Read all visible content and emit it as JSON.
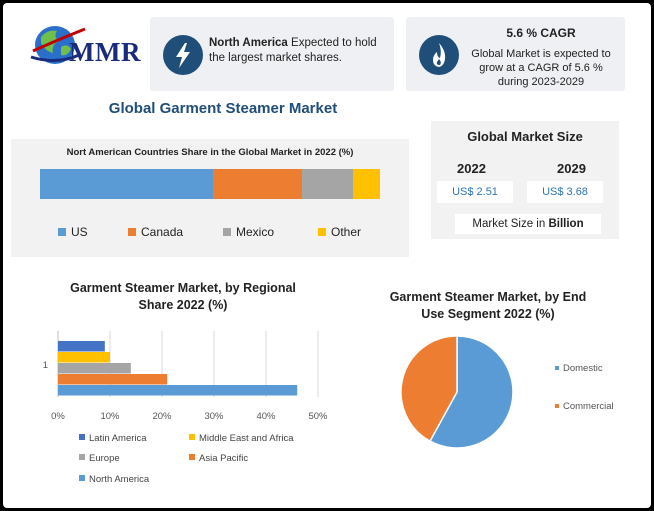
{
  "logo": {
    "text": "MMR"
  },
  "card_north_america": {
    "icon": "lightning-icon",
    "bold": "North America",
    "text": " Expected to hold the largest market shares."
  },
  "card_cagr": {
    "icon": "flame-icon",
    "head": "5.6 % CAGR",
    "text": "Global Market is expected to grow at a CAGR of 5.6 % during 2023-2029"
  },
  "main_title": "Global Garment Steamer Market",
  "market_size": {
    "title": "Global Market Size",
    "year1": "2022",
    "year2": "2029",
    "value1": "US$ 2.51",
    "value2": "US$ 3.68",
    "note_prefix": "Market Size in ",
    "note_bold": "Billion"
  },
  "colors": {
    "blue": "#5b9bd5",
    "orange": "#ed7d31",
    "gray": "#a5a5a5",
    "yellow": "#ffc000",
    "darkblue": "#4472c4",
    "navy": "#1f4e79"
  },
  "chart_data": [
    {
      "type": "bar",
      "orientation": "horizontal-stacked",
      "title": "Nort American Countries Share in the Global Market in 2022 (%)",
      "series": [
        {
          "name": "US",
          "values": [
            51
          ],
          "color": "#5b9bd5"
        },
        {
          "name": "Canada",
          "values": [
            26
          ],
          "color": "#ed7d31"
        },
        {
          "name": "Mexico",
          "values": [
            15
          ],
          "color": "#a5a5a5"
        },
        {
          "name": "Other",
          "values": [
            8
          ],
          "color": "#ffc000"
        }
      ],
      "legend": "bottom"
    },
    {
      "type": "bar",
      "orientation": "horizontal",
      "title": "Garment Steamer Market, by Regional Share 2022 (%)",
      "categories": [
        "1"
      ],
      "xlim": [
        0,
        50
      ],
      "xticks": [
        "0%",
        "10%",
        "20%",
        "30%",
        "40%",
        "50%"
      ],
      "grid": true,
      "series": [
        {
          "name": "Latin America",
          "values": [
            9
          ],
          "color": "#4472c4"
        },
        {
          "name": "Middle East and Africa",
          "values": [
            10
          ],
          "color": "#ffc000"
        },
        {
          "name": "Europe",
          "values": [
            14
          ],
          "color": "#a5a5a5"
        },
        {
          "name": "Asia Pacific",
          "values": [
            21
          ],
          "color": "#ed7d31"
        },
        {
          "name": "North America",
          "values": [
            46
          ],
          "color": "#5b9bd5"
        }
      ],
      "legend": "bottom"
    },
    {
      "type": "pie",
      "title": "Garment Steamer Market, by End Use Segment 2022 (%)",
      "slices": [
        {
          "name": "Domestic",
          "value": 58,
          "color": "#5b9bd5"
        },
        {
          "name": "Commercial",
          "value": 42,
          "color": "#ed7d31"
        }
      ],
      "legend": "right"
    }
  ]
}
